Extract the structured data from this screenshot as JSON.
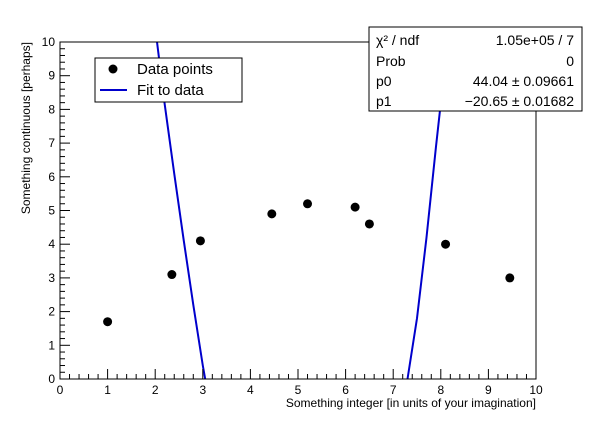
{
  "chart_data": {
    "type": "scatter",
    "xlabel": "Something integer [in units of your imagination]",
    "ylabel": "Something continuous [perhaps]",
    "xlim": [
      0,
      10
    ],
    "ylim": [
      0,
      10
    ],
    "x_ticks": [
      "0",
      "1",
      "2",
      "3",
      "4",
      "5",
      "6",
      "7",
      "8",
      "9",
      "10"
    ],
    "y_ticks": [
      "0",
      "1",
      "2",
      "3",
      "4",
      "5",
      "6",
      "7",
      "8",
      "9",
      "10"
    ],
    "grid": false,
    "legend": {
      "placement": "top-left",
      "entries": [
        {
          "label": "Data points",
          "style": "marker",
          "color": "#000000"
        },
        {
          "label": "Fit to data",
          "style": "line",
          "color": "#0000cc"
        }
      ]
    },
    "stats": [
      {
        "label": "χ² / ndf",
        "value": "1.05e+05 / 7"
      },
      {
        "label": "Prob",
        "value": "0"
      },
      {
        "label": "p0",
        "value": "44.04 ± 0.09661"
      },
      {
        "label": "p1",
        "value": "−20.65 ± 0.01682"
      }
    ],
    "series": [
      {
        "name": "Data points",
        "color": "#000000",
        "x": [
          1.0,
          2.35,
          2.95,
          4.45,
          5.2,
          6.2,
          6.5,
          8.1,
          9.45
        ],
        "y": [
          1.7,
          3.1,
          4.1,
          4.9,
          5.2,
          5.1,
          4.6,
          4.0,
          3.0
        ],
        "yerr": [
          0.1,
          0.1,
          0.1,
          0.1,
          0.1,
          0.1,
          0.1,
          0.1,
          0.1
        ]
      }
    ],
    "fit": {
      "name": "Fit to data",
      "color": "#0000cc",
      "x": [
        2.03,
        2.2,
        2.4,
        2.6,
        2.8,
        3.0,
        3.05,
        7.3,
        7.5,
        7.7,
        7.9,
        8.15
      ],
      "y": [
        10.1,
        8.15,
        6.1,
        4.1,
        2.2,
        0.4,
        0.0,
        0.0,
        1.8,
        4.2,
        6.9,
        10.1
      ]
    }
  }
}
